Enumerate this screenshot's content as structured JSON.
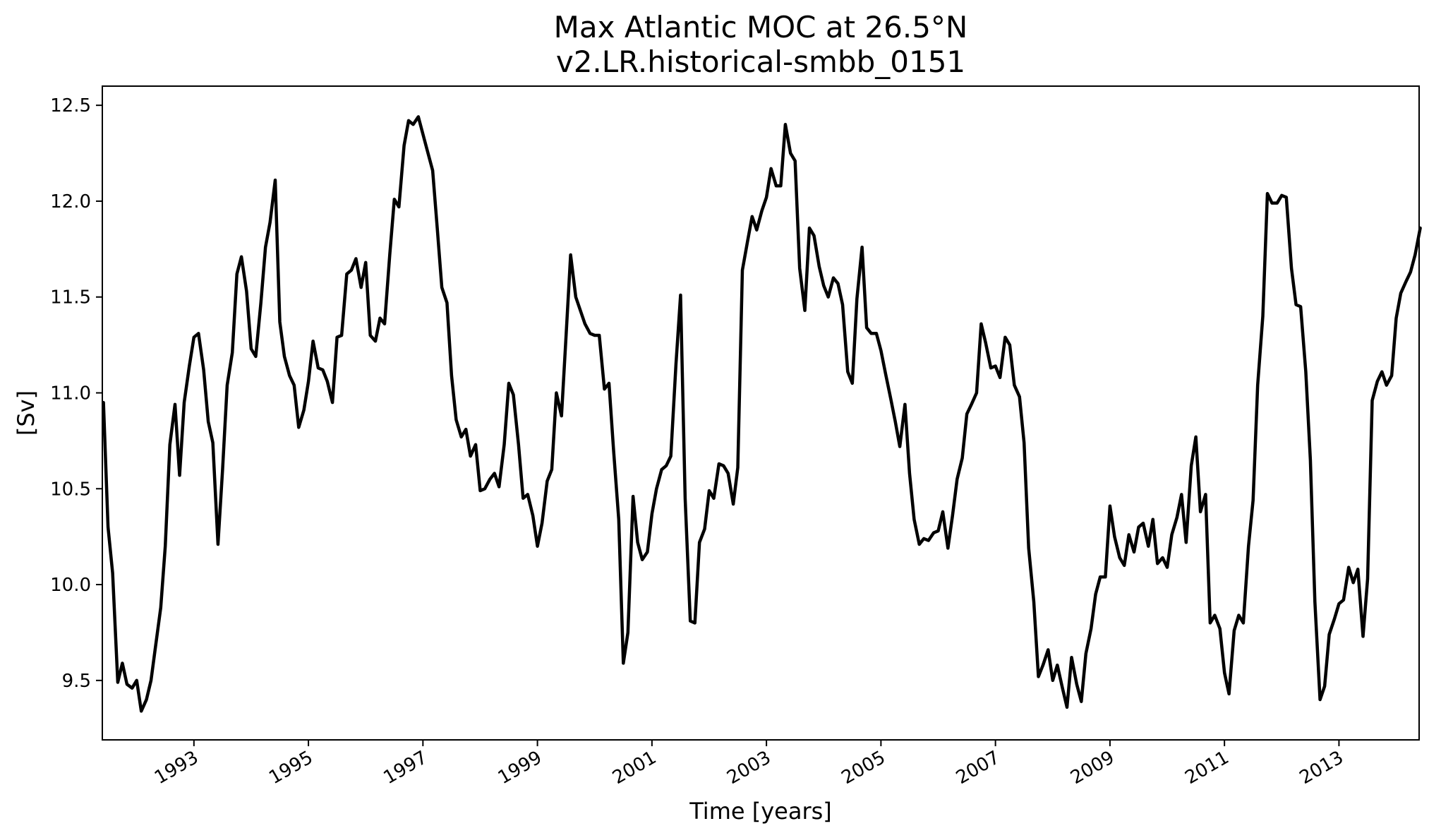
{
  "chart_data": {
    "type": "line",
    "title": "Max Atlantic MOC at 26.5°N",
    "subtitle": "v2.LR.historical-smbb_0151",
    "xlabel": "Time [years]",
    "ylabel": "[Sv]",
    "xlim": [
      1991.4,
      2014.4
    ],
    "ylim": [
      9.19,
      12.6
    ],
    "xticks": [
      "1993",
      "1995",
      "1997",
      "1999",
      "2001",
      "2003",
      "2005",
      "2007",
      "2009",
      "2011",
      "2013"
    ],
    "yticks": [
      "9.5",
      "10.0",
      "10.5",
      "11.0",
      "11.5",
      "12.0",
      "12.5"
    ],
    "grid": false,
    "line_color": "#000000",
    "series": [
      {
        "x": [
          1991.42,
          1991.5,
          1991.58,
          1991.67,
          1991.75,
          1991.83,
          1991.92,
          1992.0,
          1992.08,
          1992.17,
          1992.25,
          1992.33,
          1992.42,
          1992.5,
          1992.58,
          1992.67,
          1992.75,
          1992.83,
          1992.92,
          1993.0,
          1993.08,
          1993.17,
          1993.25,
          1993.33,
          1993.42,
          1993.5,
          1993.58,
          1993.67,
          1993.75,
          1993.83,
          1993.92,
          1994.0,
          1994.08,
          1994.17,
          1994.25,
          1994.33,
          1994.42,
          1994.5,
          1994.58,
          1994.67,
          1994.75,
          1994.83,
          1994.92,
          1995.0,
          1995.08,
          1995.17,
          1995.25,
          1995.33,
          1995.42,
          1995.5,
          1995.58,
          1995.67,
          1995.75,
          1995.83,
          1995.92,
          1996.0,
          1996.08,
          1996.17,
          1996.25,
          1996.33,
          1996.42,
          1996.5,
          1996.58,
          1996.67,
          1996.75,
          1996.83,
          1996.92,
          1997.0,
          1997.08,
          1997.17,
          1997.25,
          1997.33,
          1997.42,
          1997.5,
          1997.58,
          1997.67,
          1997.75,
          1997.83,
          1997.92,
          1998.0,
          1998.08,
          1998.17,
          1998.25,
          1998.33,
          1998.42,
          1998.5,
          1998.58,
          1998.67,
          1998.75,
          1998.83,
          1998.92,
          1999.0,
          1999.08,
          1999.17,
          1999.25,
          1999.33,
          1999.42,
          1999.5,
          1999.58,
          1999.67,
          1999.75,
          1999.83,
          1999.92,
          2000.0,
          2000.08,
          2000.17,
          2000.25,
          2000.33,
          2000.42,
          2000.5,
          2000.58,
          2000.67,
          2000.75,
          2000.83,
          2000.92,
          2001.0,
          2001.08,
          2001.17,
          2001.25,
          2001.33,
          2001.42,
          2001.5,
          2001.58,
          2001.67,
          2001.75,
          2001.83,
          2001.92,
          2002.0,
          2002.08,
          2002.17,
          2002.25,
          2002.33,
          2002.42,
          2002.5,
          2002.58,
          2002.67,
          2002.75,
          2002.83,
          2002.92,
          2003.0,
          2003.08,
          2003.17,
          2003.25,
          2003.33,
          2003.42,
          2003.5,
          2003.58,
          2003.67,
          2003.75,
          2003.83,
          2003.92,
          2004.0,
          2004.08,
          2004.17,
          2004.25,
          2004.33,
          2004.42,
          2004.5,
          2004.58,
          2004.67,
          2004.75,
          2004.83,
          2004.92,
          2005.0,
          2005.08,
          2005.17,
          2005.25,
          2005.33,
          2005.42,
          2005.5,
          2005.58,
          2005.67,
          2005.75,
          2005.83,
          2005.92,
          2006.0,
          2006.08,
          2006.17,
          2006.25,
          2006.33,
          2006.42,
          2006.5,
          2006.58,
          2006.67,
          2006.75,
          2006.83,
          2006.92,
          2007.0,
          2007.08,
          2007.17,
          2007.25,
          2007.33,
          2007.42,
          2007.5,
          2007.58,
          2007.67,
          2007.75,
          2007.83,
          2007.92,
          2008.0,
          2008.08,
          2008.17,
          2008.25,
          2008.33,
          2008.42,
          2008.5,
          2008.58,
          2008.67,
          2008.75,
          2008.83,
          2008.92,
          2009.0,
          2009.08,
          2009.17,
          2009.25,
          2009.33,
          2009.42,
          2009.5,
          2009.58,
          2009.67,
          2009.75,
          2009.83,
          2009.92,
          2010.0,
          2010.08,
          2010.17,
          2010.25,
          2010.33,
          2010.42,
          2010.5,
          2010.58,
          2010.67,
          2010.75,
          2010.83,
          2010.92,
          2011.0,
          2011.08,
          2011.17,
          2011.25,
          2011.33,
          2011.42,
          2011.5,
          2011.58,
          2011.67,
          2011.75,
          2011.83,
          2011.92,
          2012.0,
          2012.08,
          2012.17,
          2012.25,
          2012.33,
          2012.42,
          2012.5,
          2012.58,
          2012.67,
          2012.75,
          2012.83,
          2012.92,
          2013.0,
          2013.08,
          2013.17,
          2013.25,
          2013.33,
          2013.42,
          2013.5,
          2013.58,
          2013.67,
          2013.75,
          2013.83,
          2013.92,
          2014.0,
          2014.08,
          2014.17,
          2014.25,
          2014.33,
          2014.42
        ],
        "values": [
          10.95,
          10.3,
          10.06,
          9.49,
          9.59,
          9.48,
          9.46,
          9.5,
          9.34,
          9.4,
          9.5,
          9.68,
          9.88,
          10.2,
          10.73,
          10.94,
          10.57,
          10.95,
          11.14,
          11.29,
          11.31,
          11.12,
          10.85,
          10.74,
          10.21,
          10.6,
          11.04,
          11.21,
          11.62,
          11.71,
          11.53,
          11.23,
          11.19,
          11.47,
          11.76,
          11.89,
          12.11,
          11.37,
          11.19,
          11.09,
          11.04,
          10.82,
          10.91,
          11.06,
          11.27,
          11.13,
          11.12,
          11.06,
          10.95,
          11.29,
          11.3,
          11.62,
          11.64,
          11.7,
          11.55,
          11.68,
          11.3,
          11.27,
          11.39,
          11.36,
          11.72,
          12.01,
          11.97,
          12.29,
          12.42,
          12.4,
          12.44,
          12.35,
          12.26,
          12.16,
          11.86,
          11.55,
          11.47,
          11.09,
          10.86,
          10.77,
          10.81,
          10.67,
          10.73,
          10.49,
          10.5,
          10.55,
          10.58,
          10.51,
          10.73,
          11.05,
          10.99,
          10.73,
          10.45,
          10.47,
          10.36,
          10.2,
          10.32,
          10.54,
          10.6,
          11.0,
          10.88,
          11.3,
          11.72,
          11.5,
          11.43,
          11.36,
          11.31,
          11.3,
          11.3,
          11.02,
          11.05,
          10.7,
          10.34,
          9.59,
          9.75,
          10.46,
          10.22,
          10.13,
          10.17,
          10.37,
          10.5,
          10.6,
          10.62,
          10.67,
          11.15,
          11.51,
          10.45,
          9.81,
          9.8,
          10.22,
          10.29,
          10.49,
          10.45,
          10.63,
          10.62,
          10.58,
          10.42,
          10.61,
          11.64,
          11.79,
          11.92,
          11.85,
          11.95,
          12.02,
          12.17,
          12.08,
          12.08,
          12.4,
          12.25,
          12.21,
          11.65,
          11.43,
          11.86,
          11.82,
          11.66,
          11.56,
          11.5,
          11.6,
          11.57,
          11.46,
          11.11,
          11.05,
          11.49,
          11.76,
          11.34,
          11.31,
          11.31,
          11.22,
          11.1,
          10.97,
          10.85,
          10.72,
          10.94,
          10.58,
          10.34,
          10.21,
          10.24,
          10.23,
          10.27,
          10.28,
          10.38,
          10.19,
          10.36,
          10.55,
          10.66,
          10.89,
          10.94,
          11.0,
          11.36,
          11.26,
          11.13,
          11.14,
          11.08,
          11.29,
          11.25,
          11.04,
          10.98,
          10.74,
          10.19,
          9.91,
          9.52,
          9.58,
          9.66,
          9.5,
          9.58,
          9.46,
          9.36,
          9.62,
          9.48,
          9.39,
          9.64,
          9.77,
          9.95,
          10.04,
          10.04,
          10.41,
          10.25,
          10.14,
          10.1,
          10.26,
          10.17,
          10.3,
          10.32,
          10.2,
          10.34,
          10.11,
          10.14,
          10.09,
          10.26,
          10.35,
          10.47,
          10.22,
          10.62,
          10.77,
          10.38,
          10.47,
          9.8,
          9.84,
          9.77,
          9.54,
          9.43,
          9.76,
          9.84,
          9.8,
          10.2,
          10.44,
          11.04,
          11.4,
          12.04,
          11.99,
          11.99,
          12.03,
          12.02,
          11.65,
          11.46,
          11.45,
          11.11,
          10.65,
          9.91,
          9.4,
          9.47,
          9.74,
          9.82,
          9.9,
          9.92,
          10.09,
          10.01,
          10.08,
          9.73,
          10.03,
          10.96,
          11.06,
          11.11,
          11.04,
          11.09,
          11.39,
          11.52,
          11.58,
          11.63,
          11.72,
          11.86
        ]
      }
    ]
  }
}
